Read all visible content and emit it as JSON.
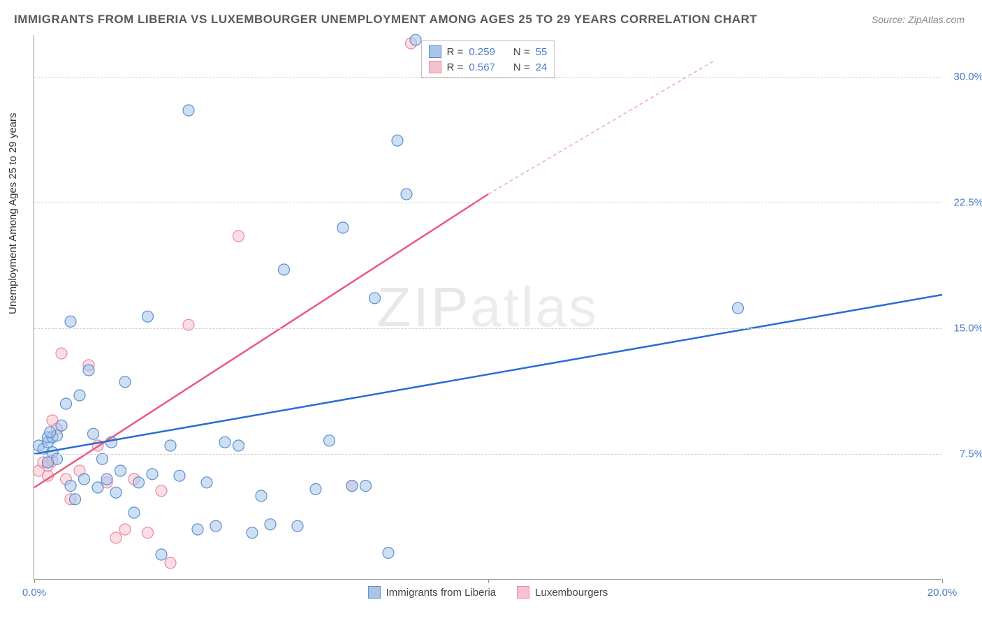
{
  "title": "IMMIGRANTS FROM LIBERIA VS LUXEMBOURGER UNEMPLOYMENT AMONG AGES 25 TO 29 YEARS CORRELATION CHART",
  "source": "Source: ZipAtlas.com",
  "ylabel": "Unemployment Among Ages 25 to 29 years",
  "watermark_zip": "ZIP",
  "watermark_atlas": "atlas",
  "chart": {
    "type": "scatter",
    "background_color": "#ffffff",
    "grid_color": "#d0d0d0",
    "axis_color": "#999999",
    "xlim": [
      0,
      20
    ],
    "ylim": [
      0,
      32.5
    ],
    "xtick_positions": [
      0,
      10,
      20
    ],
    "xtick_labels": [
      "0.0%",
      "",
      "20.0%"
    ],
    "ytick_positions": [
      7.5,
      15.0,
      22.5,
      30.0
    ],
    "ytick_labels": [
      "7.5%",
      "15.0%",
      "22.5%",
      "30.0%"
    ],
    "label_color": "#4a7bc8",
    "label_fontsize": 15,
    "title_fontsize": 17,
    "title_color": "#5a5a5a",
    "marker_radius": 8,
    "marker_opacity": 0.55,
    "series": [
      {
        "name": "Immigrants from Liberia",
        "color_fill": "#a8c5e8",
        "color_stroke": "#5b8fd1",
        "r_label": "R =",
        "r_value": "0.259",
        "n_label": "N =",
        "n_value": "55",
        "regression": {
          "x1": 0,
          "y1": 7.5,
          "x2": 20,
          "y2": 17.0,
          "color": "#2b6cd4",
          "width": 2.5,
          "dash": "none"
        },
        "points": [
          [
            0.1,
            8.0
          ],
          [
            0.2,
            7.8
          ],
          [
            0.3,
            8.2
          ],
          [
            0.3,
            8.5
          ],
          [
            0.4,
            7.6
          ],
          [
            0.4,
            8.5
          ],
          [
            0.5,
            8.6
          ],
          [
            0.5,
            7.2
          ],
          [
            0.6,
            9.2
          ],
          [
            0.7,
            10.5
          ],
          [
            0.8,
            15.4
          ],
          [
            0.8,
            5.6
          ],
          [
            0.9,
            4.8
          ],
          [
            1.0,
            11.0
          ],
          [
            1.1,
            6.0
          ],
          [
            1.2,
            12.5
          ],
          [
            1.3,
            8.7
          ],
          [
            1.4,
            5.5
          ],
          [
            1.5,
            7.2
          ],
          [
            1.6,
            6.0
          ],
          [
            1.7,
            8.2
          ],
          [
            1.8,
            5.2
          ],
          [
            1.9,
            6.5
          ],
          [
            2.0,
            11.8
          ],
          [
            2.2,
            4.0
          ],
          [
            2.3,
            5.8
          ],
          [
            2.5,
            15.7
          ],
          [
            2.6,
            6.3
          ],
          [
            2.8,
            1.5
          ],
          [
            3.0,
            8.0
          ],
          [
            3.2,
            6.2
          ],
          [
            3.4,
            28.0
          ],
          [
            3.6,
            3.0
          ],
          [
            3.8,
            5.8
          ],
          [
            4.0,
            3.2
          ],
          [
            4.2,
            8.2
          ],
          [
            4.5,
            8.0
          ],
          [
            4.8,
            2.8
          ],
          [
            5.0,
            5.0
          ],
          [
            5.2,
            3.3
          ],
          [
            5.5,
            18.5
          ],
          [
            5.8,
            3.2
          ],
          [
            6.2,
            5.4
          ],
          [
            6.5,
            8.3
          ],
          [
            6.8,
            21.0
          ],
          [
            7.0,
            5.6
          ],
          [
            7.3,
            5.6
          ],
          [
            7.5,
            16.8
          ],
          [
            7.8,
            1.6
          ],
          [
            8.0,
            26.2
          ],
          [
            8.2,
            23.0
          ],
          [
            8.4,
            32.2
          ],
          [
            15.5,
            16.2
          ],
          [
            0.3,
            7.0
          ],
          [
            0.35,
            8.8
          ]
        ]
      },
      {
        "name": "Luxembourgers",
        "color_fill": "#f5c3ce",
        "color_stroke": "#e88ba1",
        "r_label": "R =",
        "r_value": "0.567",
        "n_label": "N =",
        "n_value": "24",
        "regression": {
          "x1": 0,
          "y1": 5.5,
          "x2": 10,
          "y2": 23.0,
          "color": "#e85a7e",
          "width": 2.5,
          "dash": "none"
        },
        "regression_ext": {
          "x1": 10,
          "y1": 23.0,
          "x2": 15,
          "y2": 31.0,
          "color": "#f0a8b8",
          "width": 1.5,
          "dash": "5,4"
        },
        "points": [
          [
            0.1,
            6.5
          ],
          [
            0.2,
            7.0
          ],
          [
            0.3,
            6.2
          ],
          [
            0.3,
            6.8
          ],
          [
            0.4,
            7.1
          ],
          [
            0.4,
            9.5
          ],
          [
            0.5,
            9.0
          ],
          [
            0.6,
            13.5
          ],
          [
            0.7,
            6.0
          ],
          [
            0.8,
            4.8
          ],
          [
            1.0,
            6.5
          ],
          [
            1.2,
            12.8
          ],
          [
            1.4,
            8.0
          ],
          [
            1.6,
            5.8
          ],
          [
            1.8,
            2.5
          ],
          [
            2.0,
            3.0
          ],
          [
            2.2,
            6.0
          ],
          [
            2.5,
            2.8
          ],
          [
            2.8,
            5.3
          ],
          [
            3.0,
            1.0
          ],
          [
            3.4,
            15.2
          ],
          [
            4.5,
            20.5
          ],
          [
            7.0,
            5.6
          ],
          [
            8.3,
            32.0
          ]
        ]
      }
    ]
  }
}
